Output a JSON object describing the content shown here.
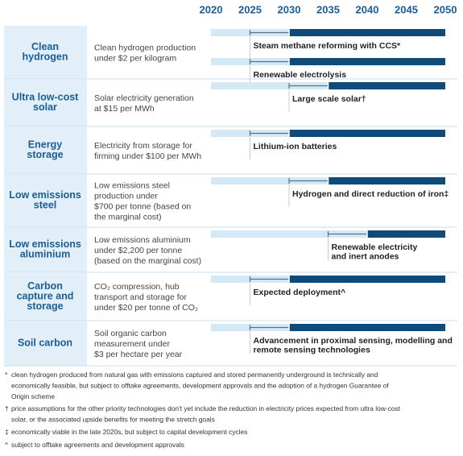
{
  "chart_data": {
    "type": "timeline",
    "xlim": [
      2020,
      2050
    ],
    "xticks": [
      2020,
      2025,
      2030,
      2035,
      2040,
      2045,
      2050
    ],
    "light_color": "#d4e9f6",
    "dark_color": "#0f4a78",
    "rows": [
      {
        "technology": [
          "Clean",
          "hydrogen"
        ],
        "goal": [
          "Clean hydrogen production",
          "under $2 per kilogram"
        ],
        "bars": [
          {
            "label": [
              "Steam methane reforming with CCS*"
            ],
            "start": 2020,
            "whisker_from": 2025,
            "whisker_to": 2030,
            "end": 2050
          },
          {
            "label": [
              "Renewable electrolysis"
            ],
            "start": 2020,
            "whisker_from": 2025,
            "whisker_to": 2030,
            "end": 2050
          }
        ]
      },
      {
        "technology": [
          "Ultra low-cost",
          "solar"
        ],
        "goal": [
          "Solar electricity generation",
          "at $15 per MWh"
        ],
        "bars": [
          {
            "label": [
              "Large scale solar†"
            ],
            "start": 2020,
            "whisker_from": 2030,
            "whisker_to": 2035,
            "end": 2050
          }
        ]
      },
      {
        "technology": [
          "Energy",
          "storage"
        ],
        "goal": [
          "Electricity from storage for",
          "firming under $100 per MWh"
        ],
        "bars": [
          {
            "label": [
              "Lithium-ion batteries"
            ],
            "start": 2020,
            "whisker_from": 2025,
            "whisker_to": 2030,
            "end": 2050
          }
        ]
      },
      {
        "technology": [
          "Low emissions",
          "steel"
        ],
        "goal": [
          "Low emissions steel",
          "production under",
          "$700 per tonne (based on",
          "the marginal cost)"
        ],
        "bars": [
          {
            "label": [
              "Hydrogen and direct reduction of iron‡"
            ],
            "start": 2020,
            "whisker_from": 2030,
            "whisker_to": 2035,
            "end": 2050
          }
        ]
      },
      {
        "technology": [
          "Low emissions",
          "aluminium"
        ],
        "goal": [
          "Low emissions aluminium",
          "under $2,200 per tonne",
          "(based on the marginal cost)"
        ],
        "bars": [
          {
            "label": [
              "Renewable electricity",
              "and inert anodes"
            ],
            "start": 2020,
            "whisker_from": 2035,
            "whisker_to": 2040,
            "end": 2050
          }
        ]
      },
      {
        "technology": [
          "Carbon",
          "capture and",
          "storage"
        ],
        "goal": [
          "CO₂ compression, hub",
          "transport and storage for",
          "under $20 per tonne of CO₂"
        ],
        "bars": [
          {
            "label": [
              "Expected deployment^"
            ],
            "start": 2020,
            "whisker_from": 2025,
            "whisker_to": 2030,
            "end": 2050
          }
        ]
      },
      {
        "technology": [
          "Soil carbon"
        ],
        "goal": [
          "Soil organic carbon",
          "measurement under",
          "$3 per hectare per year"
        ],
        "bars": [
          {
            "label": [
              "Advancement in proximal sensing, modelling and",
              "remote sensing technologies"
            ],
            "start": 2020,
            "whisker_from": 2025,
            "whisker_to": 2030,
            "end": 2050
          }
        ]
      }
    ]
  },
  "footnotes": [
    {
      "mark": "*",
      "text": [
        "clean hydrogen produced from natural gas with emissions captured and stored permanently underground is technically and",
        "economically feasible, but subject to offtake agreements, development approvals and the adoption of a hydrogen Guarantee of",
        "Origin scheme"
      ]
    },
    {
      "mark": "†",
      "text": [
        "price assumptions for the other priority technologies don't yet include the reduction in electricity prices expected from ultra low-cost",
        "solar, or the associated upside benefits for meeting the stretch goals"
      ]
    },
    {
      "mark": "‡",
      "text": [
        "economically viable in the late 2020s, but subject to capital development cycles"
      ]
    },
    {
      "mark": "^",
      "text": [
        "subject to offtake agreements and development approvals"
      ]
    }
  ]
}
